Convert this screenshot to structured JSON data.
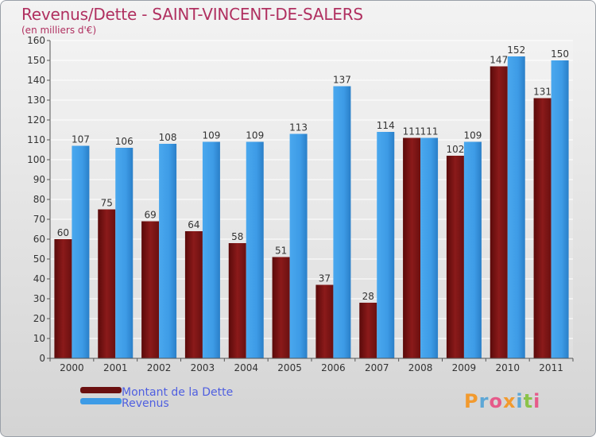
{
  "chart_data": {
    "type": "bar",
    "title": "Revenus/Dette - SAINT-VINCENT-DE-SALERS",
    "subtitle": "(en milliers d'€)",
    "categories": [
      "2000",
      "2001",
      "2002",
      "2003",
      "2004",
      "2005",
      "2006",
      "2007",
      "2008",
      "2009",
      "2010",
      "2011"
    ],
    "series": [
      {
        "name": "Montant de la Dette",
        "color": "#8b1a1a",
        "values": [
          60,
          75,
          69,
          64,
          58,
          51,
          37,
          28,
          111,
          102,
          147,
          131
        ]
      },
      {
        "name": "Revenus",
        "color": "#3d9be6",
        "values": [
          107,
          106,
          108,
          109,
          109,
          113,
          137,
          114,
          111,
          109,
          152,
          150
        ]
      }
    ],
    "ylim": [
      0,
      160
    ],
    "ytick_step": 10,
    "grid": true,
    "legend_position": "bottom-left"
  },
  "logo": {
    "text": "Proxiti"
  }
}
